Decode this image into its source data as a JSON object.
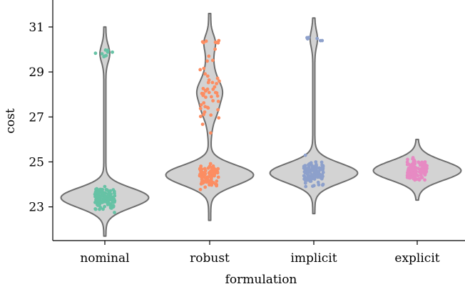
{
  "chart_data": {
    "type": "violin",
    "title": "",
    "xlabel": "formulation",
    "ylabel": "cost",
    "categories": [
      "nominal",
      "robust",
      "implicit",
      "explicit"
    ],
    "ylim": [
      21.5,
      32.2
    ],
    "yticks": [
      23,
      25,
      27,
      29,
      31
    ],
    "grid": false,
    "violin_color": "#d3d3d3",
    "violin_edge_color": "#6e6e6e",
    "series": [
      {
        "category": "nominal",
        "color": "#66c2a5",
        "violin_range": [
          21.7,
          31.0
        ],
        "clusters": [
          {
            "center": 23.4,
            "spread": 0.45,
            "count": 130
          },
          {
            "center": 29.8,
            "spread": 0.18,
            "count": 10
          }
        ]
      },
      {
        "category": "robust",
        "color": "#fc8d62",
        "violin_range": [
          22.4,
          31.6
        ],
        "clusters": [
          {
            "center": 24.4,
            "spread": 0.5,
            "count": 90
          },
          {
            "center": 28.2,
            "spread": 1.6,
            "count": 45
          },
          {
            "center": 30.3,
            "spread": 0.15,
            "count": 8
          }
        ]
      },
      {
        "category": "implicit",
        "color": "#8da0cb",
        "violin_range": [
          22.7,
          31.4
        ],
        "clusters": [
          {
            "center": 24.5,
            "spread": 0.45,
            "count": 120
          },
          {
            "center": 30.5,
            "spread": 0.1,
            "count": 6
          }
        ]
      },
      {
        "category": "explicit",
        "color": "#e78ac3",
        "violin_range": [
          23.3,
          26.0
        ],
        "clusters": [
          {
            "center": 24.6,
            "spread": 0.4,
            "count": 120
          }
        ]
      }
    ]
  }
}
